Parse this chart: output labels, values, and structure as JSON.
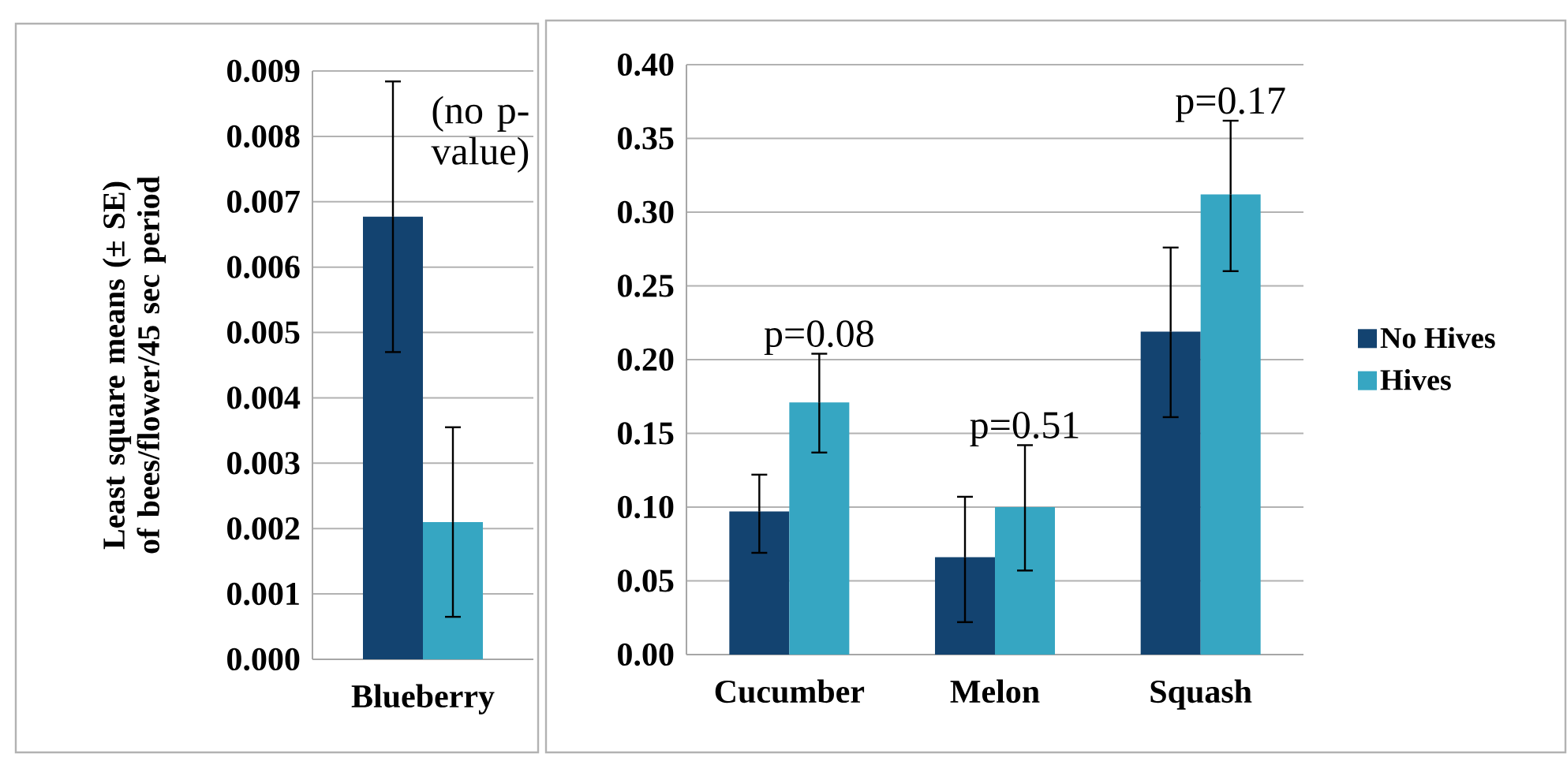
{
  "chart_data": [
    {
      "type": "bar",
      "ylabel": "Least square means (± SE) of bees/flower/45 sec period",
      "categories": [
        "Blueberry"
      ],
      "series": [
        {
          "color": "#134370",
          "values": [
            0.00677
          ],
          "errors": [
            [
              0.0047,
              0.00884
            ]
          ]
        },
        {
          "color": "#36a6c2",
          "values": [
            0.0021
          ],
          "errors": [
            [
              0.00065,
              0.00355
            ]
          ]
        }
      ],
      "ylim": [
        0,
        0.009
      ],
      "yticks": [
        {
          "value": 0,
          "label": "0.000"
        },
        {
          "value": 0.001,
          "label": "0.001"
        },
        {
          "value": 0.002,
          "label": "0.002"
        },
        {
          "value": 0.003,
          "label": "0.003"
        },
        {
          "value": 0.004,
          "label": "0.004"
        },
        {
          "value": 0.005,
          "label": "0.005"
        },
        {
          "value": 0.006,
          "label": "0.006"
        },
        {
          "value": 0.007,
          "label": "0.007"
        },
        {
          "value": 0.008,
          "label": "0.008"
        },
        {
          "value": 0.009,
          "label": "0.009"
        }
      ],
      "grid": "y",
      "annotations": [
        "(no p-value)"
      ]
    },
    {
      "type": "bar",
      "categories": [
        "Cucumber",
        "Melon",
        "Squash"
      ],
      "series": [
        {
          "name": "No Hives",
          "color": "#134370",
          "values": [
            0.097,
            0.066,
            0.219
          ],
          "errors": [
            [
              0.069,
              0.122
            ],
            [
              0.022,
              0.107
            ],
            [
              0.161,
              0.276
            ]
          ]
        },
        {
          "name": "Hives",
          "color": "#36a6c2",
          "values": [
            0.171,
            0.1,
            0.312
          ],
          "errors": [
            [
              0.137,
              0.204
            ],
            [
              0.057,
              0.142
            ],
            [
              0.26,
              0.362
            ]
          ]
        }
      ],
      "ylim": [
        0,
        0.4
      ],
      "yticks": [
        {
          "value": 0,
          "label": "0.00"
        },
        {
          "value": 0.05,
          "label": "0.05"
        },
        {
          "value": 0.1,
          "label": "0.10"
        },
        {
          "value": 0.15,
          "label": "0.15"
        },
        {
          "value": 0.2,
          "label": "0.20"
        },
        {
          "value": 0.25,
          "label": "0.25"
        },
        {
          "value": 0.3,
          "label": "0.30"
        },
        {
          "value": 0.35,
          "label": "0.35"
        },
        {
          "value": 0.4,
          "label": "0.40"
        }
      ],
      "grid": "y",
      "legend": "right",
      "annotations": [
        "p=0.08",
        "p=0.51",
        "p=0.17"
      ]
    }
  ]
}
